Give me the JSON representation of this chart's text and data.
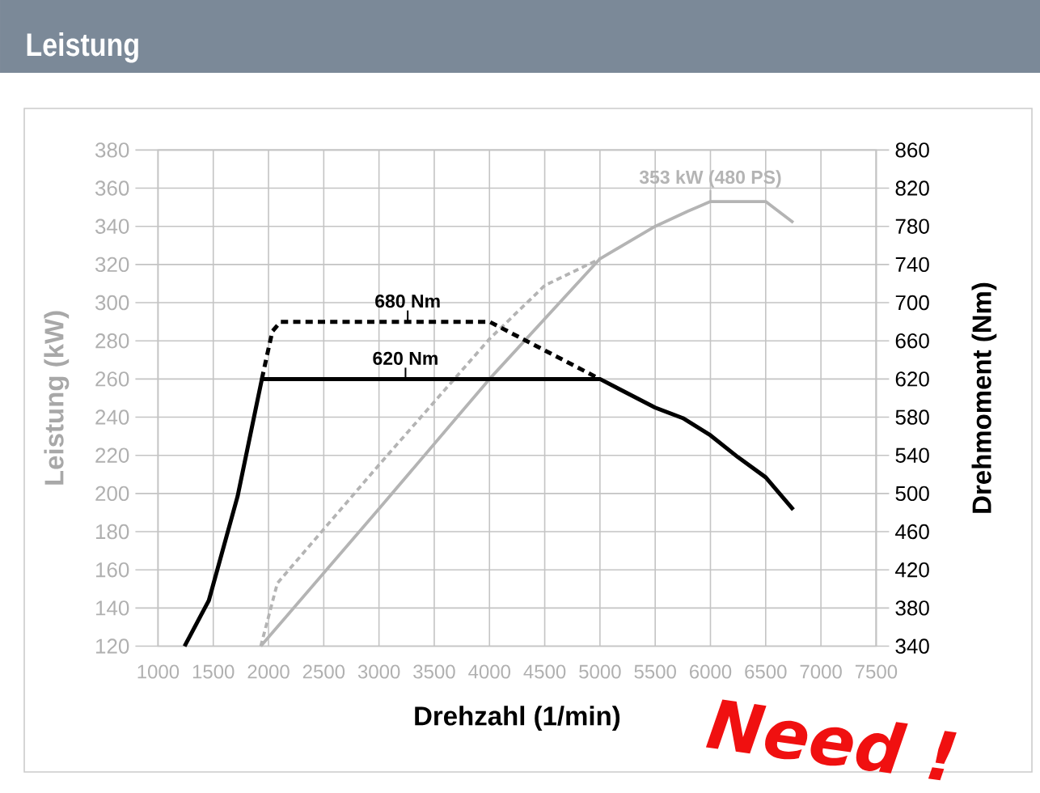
{
  "chart_data": {
    "type": "line",
    "title": "Leistung",
    "xlabel": "Drehzahl (1/min)",
    "ylabel": "Leistung (kW)",
    "y2label": "Drehmoment (Nm)",
    "xlim": [
      1000,
      7500
    ],
    "xticks": [
      1000,
      1500,
      2000,
      2500,
      3000,
      3500,
      4000,
      4500,
      5000,
      5500,
      6000,
      6500,
      7000,
      7500
    ],
    "ylim": [
      120,
      380
    ],
    "yticks": [
      120,
      140,
      160,
      180,
      200,
      220,
      240,
      260,
      280,
      300,
      320,
      340,
      360,
      380
    ],
    "y2lim": [
      340,
      860
    ],
    "y2ticks": [
      340,
      380,
      420,
      460,
      500,
      540,
      580,
      620,
      660,
      700,
      740,
      780,
      820,
      860
    ],
    "grid": true,
    "series": [
      {
        "color": "#b4b4b4",
        "x": [
          1930,
          3000,
          4000,
          5000,
          5500,
          5800,
          6000,
          6500,
          6750
        ],
        "values": [
          120,
          192,
          260,
          323,
          340,
          348,
          353,
          353,
          342
        ]
      },
      {
        "color": "#b4b4b4",
        "line_style": "dashed",
        "x": [
          1930,
          2080,
          3000,
          4000,
          4500,
          5000
        ],
        "values": [
          120,
          153,
          215,
          281,
          309,
          323
        ]
      },
      {
        "color": "#000000",
        "axis": "y2",
        "x": [
          1240,
          1460,
          1720,
          1940,
          5000,
          5500,
          5750,
          6000,
          6250,
          6500,
          6750
        ],
        "values": [
          340,
          388,
          497,
          620,
          620,
          590,
          579,
          561,
          538,
          517,
          483
        ]
      },
      {
        "color": "#000000",
        "axis": "y2",
        "line_style": "dashed",
        "x": [
          1940,
          1985,
          2035,
          2110,
          4000,
          5000
        ],
        "values": [
          620,
          644,
          670,
          680,
          680,
          620
        ]
      }
    ],
    "annotations": [
      {
        "text": "680 Nm",
        "x": 3260,
        "y": 290
      },
      {
        "text": "620 Nm",
        "x": 3240,
        "y": 260
      },
      {
        "text": "353 kW (480 PS)",
        "x": 6000,
        "y": 353
      },
      "Need !"
    ]
  }
}
